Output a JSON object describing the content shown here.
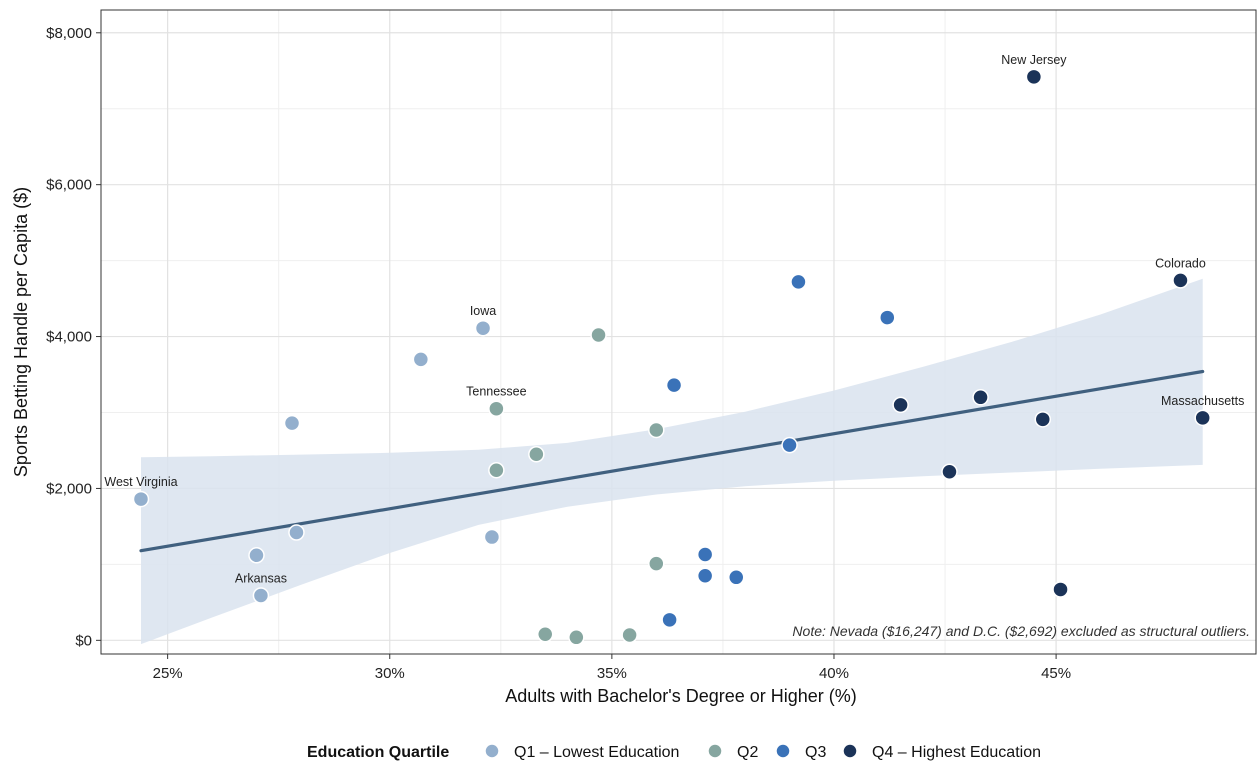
{
  "chart_data": {
    "type": "scatter",
    "xlabel": "Adults with Bachelor's Degree or Higher (%)",
    "ylabel": "Sports Betting Handle per Capita ($)",
    "xlim": [
      23.5,
      49.5
    ],
    "ylim": [
      -180,
      8300
    ],
    "x_ticks": [
      25,
      30,
      35,
      40,
      45
    ],
    "x_tick_labels": [
      "25%",
      "30%",
      "35%",
      "40%",
      "45%"
    ],
    "y_ticks": [
      0,
      2000,
      4000,
      6000,
      8000
    ],
    "y_tick_labels": [
      "$0",
      "$2,000",
      "$4,000",
      "$6,000",
      "$8,000"
    ],
    "grid": true,
    "note": "Note: Nevada ($16,247) and D.C. ($2,692) excluded as structural outliers.",
    "legend": {
      "title": "Education Quartile",
      "placement": "bottom",
      "items": [
        {
          "label": "Q1 – Lowest Education",
          "color": "#93afcd"
        },
        {
          "label": "Q2",
          "color": "#86a6a0"
        },
        {
          "label": "Q3",
          "color": "#3a72b8"
        },
        {
          "label": "Q4 – Highest Education",
          "color": "#1b3358"
        }
      ]
    },
    "series": [
      {
        "name": "Q1 – Lowest Education",
        "color": "#93afcd",
        "points": [
          {
            "x": 24.4,
            "y": 1860,
            "label": "West Virginia"
          },
          {
            "x": 27.0,
            "y": 1120
          },
          {
            "x": 27.1,
            "y": 590,
            "label": "Arkansas"
          },
          {
            "x": 27.8,
            "y": 2860
          },
          {
            "x": 27.9,
            "y": 1420
          },
          {
            "x": 30.7,
            "y": 3700
          },
          {
            "x": 32.1,
            "y": 4110,
            "label": "Iowa"
          },
          {
            "x": 32.3,
            "y": 1360
          }
        ]
      },
      {
        "name": "Q2",
        "color": "#86a6a0",
        "points": [
          {
            "x": 32.4,
            "y": 3050,
            "label": "Tennessee"
          },
          {
            "x": 32.4,
            "y": 2240
          },
          {
            "x": 33.3,
            "y": 2450
          },
          {
            "x": 33.5,
            "y": 80
          },
          {
            "x": 34.2,
            "y": 40
          },
          {
            "x": 34.7,
            "y": 4020
          },
          {
            "x": 35.4,
            "y": 70
          },
          {
            "x": 36.0,
            "y": 2770
          },
          {
            "x": 36.0,
            "y": 1010
          }
        ]
      },
      {
        "name": "Q3",
        "color": "#3a72b8",
        "points": [
          {
            "x": 36.3,
            "y": 270
          },
          {
            "x": 36.4,
            "y": 3360
          },
          {
            "x": 37.1,
            "y": 1130
          },
          {
            "x": 37.1,
            "y": 850
          },
          {
            "x": 37.8,
            "y": 830
          },
          {
            "x": 39.0,
            "y": 2570
          },
          {
            "x": 39.2,
            "y": 4720
          },
          {
            "x": 41.2,
            "y": 4250
          }
        ]
      },
      {
        "name": "Q4 – Highest Education",
        "color": "#1b3358",
        "points": [
          {
            "x": 41.5,
            "y": 3100
          },
          {
            "x": 42.6,
            "y": 2220
          },
          {
            "x": 43.3,
            "y": 3200
          },
          {
            "x": 44.5,
            "y": 7420,
            "label": "New Jersey"
          },
          {
            "x": 44.7,
            "y": 2910
          },
          {
            "x": 45.1,
            "y": 670
          },
          {
            "x": 47.8,
            "y": 4740,
            "label": "Colorado"
          },
          {
            "x": 48.3,
            "y": 2930,
            "label": "Massachusetts"
          }
        ]
      }
    ],
    "trend": {
      "type": "linear",
      "color": "#40607f",
      "band_color": "#d9e3ef",
      "line": [
        {
          "x": 24.4,
          "y": 1180
        },
        {
          "x": 48.3,
          "y": 3540
        }
      ],
      "band": [
        {
          "x": 24.4,
          "lower": -50,
          "upper": 2410
        },
        {
          "x": 26.0,
          "lower": 300,
          "upper": 2425
        },
        {
          "x": 28.0,
          "lower": 730,
          "upper": 2445
        },
        {
          "x": 30.0,
          "lower": 1150,
          "upper": 2470
        },
        {
          "x": 32.0,
          "lower": 1520,
          "upper": 2510
        },
        {
          "x": 34.0,
          "lower": 1760,
          "upper": 2600
        },
        {
          "x": 36.0,
          "lower": 1920,
          "upper": 2780
        },
        {
          "x": 38.0,
          "lower": 2030,
          "upper": 3010
        },
        {
          "x": 40.0,
          "lower": 2100,
          "upper": 3290
        },
        {
          "x": 42.0,
          "lower": 2160,
          "upper": 3600
        },
        {
          "x": 44.0,
          "lower": 2210,
          "upper": 3930
        },
        {
          "x": 46.0,
          "lower": 2260,
          "upper": 4290
        },
        {
          "x": 48.3,
          "lower": 2310,
          "upper": 4760
        }
      ]
    }
  }
}
